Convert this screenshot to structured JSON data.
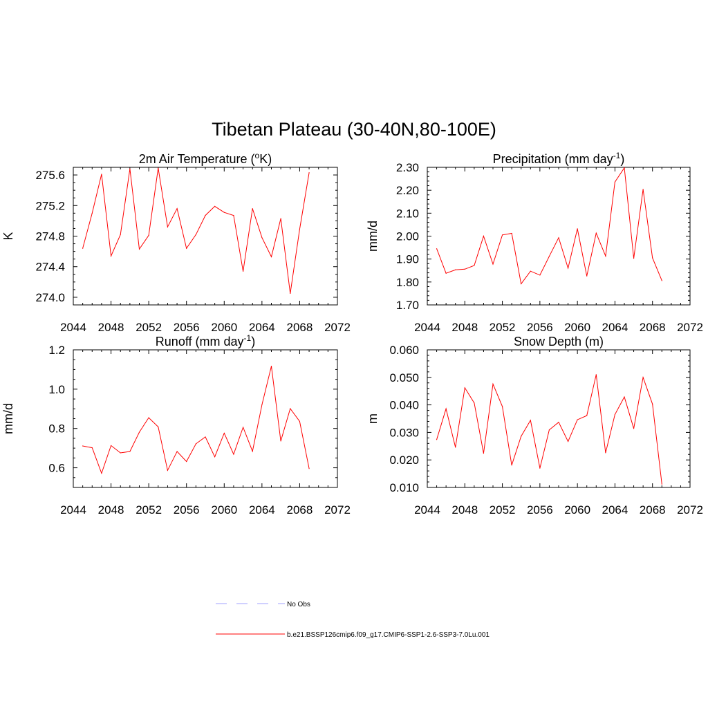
{
  "figure": {
    "title": "Tibetan Plateau (30-40N,80-100E)"
  },
  "legend": {
    "items": [
      {
        "label": "No Obs",
        "color": "#a0a0ff",
        "style": "dashed"
      },
      {
        "label": "b.e21.BSSP126cmip6.f09_g17.CMIP6-SSP1-2.6-SSP3-7.0Lu.001",
        "color": "#ff0000",
        "style": "solid"
      }
    ]
  },
  "chart_data": [
    {
      "type": "line",
      "title": "2m Air Temperature (",
      "title_sup": "o",
      "title_after": "K)",
      "xlabel": "",
      "ylabel": "K",
      "xlim": [
        2044,
        2072
      ],
      "ylim": [
        273.9,
        275.7
      ],
      "xticks": [
        2044,
        2048,
        2052,
        2056,
        2060,
        2064,
        2068,
        2072
      ],
      "xtick_labels": [
        "2044",
        "2048",
        "2052",
        "2056",
        "2060",
        "2064",
        "2068",
        "2072"
      ],
      "yticks": [
        274.0,
        274.4,
        274.8,
        275.2,
        275.6
      ],
      "ytick_labels": [
        "274.0",
        "274.4",
        "274.8",
        "275.2",
        "275.6"
      ],
      "yminor_step": 0.1,
      "color": "#ff0000",
      "x": [
        2045,
        2046,
        2047,
        2048,
        2049,
        2050,
        2051,
        2052,
        2053,
        2054,
        2055,
        2056,
        2057,
        2058,
        2059,
        2060,
        2061,
        2062,
        2063,
        2064,
        2065,
        2066,
        2067,
        2068,
        2069
      ],
      "y": [
        274.64,
        275.1,
        275.61,
        274.54,
        274.82,
        275.68,
        274.63,
        274.81,
        275.69,
        274.92,
        275.16,
        274.64,
        274.82,
        275.07,
        275.19,
        275.11,
        275.07,
        274.34,
        275.16,
        274.78,
        274.53,
        275.03,
        274.05,
        274.89,
        275.63
      ]
    },
    {
      "type": "line",
      "title": "Precipitation (mm day",
      "title_sup": "-1",
      "title_after": ")",
      "xlabel": "",
      "ylabel": "mm/d",
      "xlim": [
        2044,
        2072
      ],
      "ylim": [
        1.7,
        2.3
      ],
      "xticks": [
        2044,
        2048,
        2052,
        2056,
        2060,
        2064,
        2068,
        2072
      ],
      "xtick_labels": [
        "2044",
        "2048",
        "2052",
        "2056",
        "2060",
        "2064",
        "2068",
        "2072"
      ],
      "yticks": [
        1.7,
        1.8,
        1.9,
        2.0,
        2.1,
        2.2,
        2.3
      ],
      "ytick_labels": [
        "1.70",
        "1.80",
        "1.90",
        "2.00",
        "2.10",
        "2.20",
        "2.30"
      ],
      "yminor_step": 0.02,
      "color": "#ff0000",
      "x": [
        2045,
        2046,
        2047,
        2048,
        2049,
        2050,
        2051,
        2052,
        2053,
        2054,
        2055,
        2056,
        2057,
        2058,
        2059,
        2060,
        2061,
        2062,
        2063,
        2064,
        2065,
        2066,
        2067,
        2068,
        2069
      ],
      "y": [
        1.945,
        1.838,
        1.853,
        1.856,
        1.872,
        2.0,
        1.878,
        2.005,
        2.012,
        1.792,
        1.847,
        1.83,
        1.912,
        1.993,
        1.86,
        2.032,
        1.826,
        2.013,
        1.913,
        2.236,
        2.298,
        1.903,
        2.204,
        1.905,
        1.806
      ]
    },
    {
      "type": "line",
      "title": "Runoff (mm day",
      "title_sup": "-1",
      "title_after": ")",
      "xlabel": "",
      "ylabel": "mm/d",
      "xlim": [
        2044,
        2072
      ],
      "ylim": [
        0.5,
        1.2
      ],
      "xticks": [
        2044,
        2048,
        2052,
        2056,
        2060,
        2064,
        2068,
        2072
      ],
      "xtick_labels": [
        "2044",
        "2048",
        "2052",
        "2056",
        "2060",
        "2064",
        "2068",
        "2072"
      ],
      "yticks": [
        0.6,
        0.8,
        1.0,
        1.2
      ],
      "ytick_labels": [
        "0.6",
        "0.8",
        "1.0",
        "1.2"
      ],
      "yminor_step": 0.05,
      "color": "#ff0000",
      "x": [
        2045,
        2046,
        2047,
        2048,
        2049,
        2050,
        2051,
        2052,
        2053,
        2054,
        2055,
        2056,
        2057,
        2058,
        2059,
        2060,
        2061,
        2062,
        2063,
        2064,
        2065,
        2066,
        2067,
        2068,
        2069
      ],
      "y": [
        0.711,
        0.702,
        0.572,
        0.713,
        0.676,
        0.683,
        0.781,
        0.855,
        0.808,
        0.587,
        0.683,
        0.632,
        0.722,
        0.757,
        0.656,
        0.776,
        0.669,
        0.806,
        0.684,
        0.921,
        1.117,
        0.736,
        0.901,
        0.836,
        0.596
      ]
    },
    {
      "type": "line",
      "title": "Snow Depth (m)",
      "title_sup": "",
      "title_after": "",
      "xlabel": "",
      "ylabel": "m",
      "xlim": [
        2044,
        2072
      ],
      "ylim": [
        0.01,
        0.06
      ],
      "xticks": [
        2044,
        2048,
        2052,
        2056,
        2060,
        2064,
        2068,
        2072
      ],
      "xtick_labels": [
        "2044",
        "2048",
        "2052",
        "2056",
        "2060",
        "2064",
        "2068",
        "2072"
      ],
      "yticks": [
        0.01,
        0.02,
        0.03,
        0.04,
        0.05,
        0.06
      ],
      "ytick_labels": [
        "0.010",
        "0.020",
        "0.030",
        "0.040",
        "0.050",
        "0.060"
      ],
      "yminor_step": 0.002,
      "color": "#ff0000",
      "x": [
        2045,
        2046,
        2047,
        2048,
        2049,
        2050,
        2051,
        2052,
        2053,
        2054,
        2055,
        2056,
        2057,
        2058,
        2059,
        2060,
        2061,
        2062,
        2063,
        2064,
        2065,
        2066,
        2067,
        2068,
        2069
      ],
      "y": [
        0.0274,
        0.0386,
        0.0246,
        0.0462,
        0.0407,
        0.0224,
        0.0476,
        0.0394,
        0.0181,
        0.0286,
        0.0344,
        0.017,
        0.0309,
        0.0337,
        0.0267,
        0.0346,
        0.0361,
        0.051,
        0.0226,
        0.0365,
        0.0429,
        0.0314,
        0.05,
        0.0403,
        0.0112
      ]
    }
  ]
}
